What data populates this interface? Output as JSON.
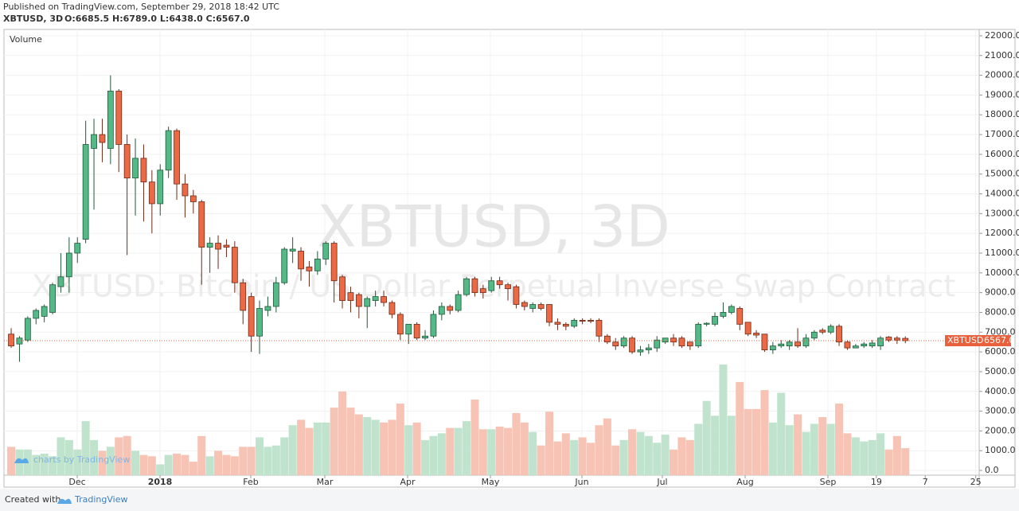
{
  "header": {
    "published": "Published on TradingView.com, September 29, 2018 18:42 UTC",
    "symbol": "XBTUSD, 3D",
    "ohlc": "O:6685.5 H:6789.0 L:6438.0 C:6567.0"
  },
  "watermark": {
    "symbol": "XBTUSD, 3D",
    "description": "XBTUSD: Bitcoin / US Dollar Perpetual Inverse Swap Contract"
  },
  "chart_data": {
    "type": "candlestick",
    "volume_title": "Volume",
    "up_color": "#53b987",
    "down_color": "#eb6a45",
    "up_volume_color": "#bfe3cc",
    "down_volume_color": "#f7c3b5",
    "grid": true,
    "open": [
      6900,
      6400,
      6600,
      7700,
      7800,
      8000,
      9300,
      9800,
      11000,
      11700,
      16300,
      17000,
      16300,
      19200,
      16500,
      14800,
      15800,
      14600,
      13500,
      15200,
      17200,
      14500,
      13900,
      13600,
      11300,
      11500,
      11400,
      11300,
      9500,
      8800,
      6800,
      8100,
      8300,
      9500,
      11100,
      11100,
      10300,
      10100,
      10700,
      11500,
      9800,
      9000,
      8900,
      8300,
      8600,
      8800,
      8500,
      7900,
      6900,
      7400,
      6700,
      6800,
      7900,
      8300,
      8100,
      8900,
      9700,
      9200,
      9100,
      9600,
      9400,
      9300,
      8500,
      8200,
      8400,
      8400,
      7500,
      7400,
      7300,
      7600,
      7600,
      7600,
      6800,
      6500,
      6300,
      6700,
      6000,
      6100,
      6200,
      6500,
      6700,
      6700,
      6500,
      6300,
      7400,
      7400,
      7800,
      8000,
      8200,
      7500,
      6950,
      6900,
      6100,
      6300,
      6300,
      6500,
      6300,
      6700,
      7100,
      7000,
      7300,
      6500,
      6200,
      6300,
      6300,
      6300,
      6750,
      6700,
      6685.5
    ],
    "high": [
      7200,
      6800,
      7800,
      8200,
      8400,
      9500,
      11000,
      11800,
      11800,
      17700,
      17800,
      17800,
      20000,
      19300,
      17000,
      16800,
      16500,
      15200,
      15500,
      17400,
      17300,
      15000,
      14200,
      13700,
      11800,
      11900,
      11700,
      11600,
      9700,
      9000,
      8600,
      8800,
      9800,
      11300,
      11800,
      11300,
      10600,
      11100,
      11600,
      11600,
      9900,
      9300,
      9000,
      8800,
      9100,
      9100,
      8600,
      8000,
      7400,
      7500,
      7100,
      8100,
      8500,
      8400,
      9100,
      9800,
      9800,
      9400,
      9800,
      9800,
      9500,
      9400,
      8600,
      8500,
      8500,
      8400,
      7700,
      7500,
      7700,
      7700,
      7700,
      7700,
      6900,
      6700,
      6800,
      6800,
      6300,
      6400,
      6800,
      6700,
      6900,
      6800,
      6500,
      7500,
      7500,
      8000,
      8500,
      8400,
      8300,
      7500,
      7100,
      6900,
      6500,
      6600,
      6600,
      7200,
      6900,
      7100,
      7200,
      7400,
      7400,
      6600,
      6400,
      6500,
      6600,
      6800,
      6800,
      6800,
      6789
    ],
    "low": [
      6200,
      5500,
      6500,
      7400,
      7500,
      7900,
      9000,
      9000,
      10500,
      11500,
      13200,
      15600,
      15500,
      15100,
      10900,
      12900,
      12600,
      12000,
      12900,
      14800,
      13700,
      12800,
      13000,
      9400,
      10000,
      10200,
      10800,
      9000,
      7400,
      6000,
      5900,
      7800,
      8000,
      9400,
      10500,
      9600,
      9300,
      9900,
      10400,
      8500,
      8200,
      8000,
      7700,
      7200,
      8300,
      8300,
      7700,
      6600,
      6400,
      6600,
      6600,
      6700,
      7600,
      7900,
      8000,
      8800,
      8800,
      8700,
      9000,
      9200,
      8600,
      8200,
      8100,
      8000,
      8100,
      7300,
      7100,
      7100,
      7200,
      7400,
      7450,
      6500,
      6400,
      6100,
      6200,
      5900,
      5800,
      5900,
      6000,
      6400,
      6300,
      6200,
      6100,
      6200,
      7300,
      7300,
      7700,
      7900,
      7100,
      6800,
      6700,
      6000,
      5900,
      6200,
      6100,
      6200,
      6200,
      6600,
      6900,
      6900,
      6300,
      6100,
      6200,
      6200,
      6200,
      6100,
      6500,
      6400,
      6438
    ],
    "close": [
      6300,
      6700,
      7700,
      8100,
      8300,
      9400,
      9800,
      11000,
      11500,
      16500,
      17000,
      16600,
      19200,
      16500,
      14800,
      15800,
      14600,
      13500,
      15200,
      17200,
      14500,
      13900,
      13600,
      11300,
      11500,
      11200,
      11300,
      9500,
      8100,
      6800,
      8200,
      8300,
      9500,
      11200,
      11200,
      10200,
      10100,
      10700,
      11500,
      9600,
      8600,
      8600,
      8300,
      8700,
      8800,
      8500,
      7900,
      6900,
      7400,
      6700,
      6800,
      7900,
      8300,
      8100,
      8900,
      9700,
      9000,
      9000,
      9600,
      9400,
      9200,
      8400,
      8300,
      8400,
      8200,
      7500,
      7400,
      7300,
      7600,
      7550,
      7550,
      6800,
      6500,
      6300,
      6700,
      6000,
      6100,
      6200,
      6600,
      6700,
      6500,
      6300,
      6300,
      7400,
      7450,
      7800,
      8000,
      8300,
      7400,
      6900,
      6850,
      6100,
      6300,
      6400,
      6500,
      6300,
      6700,
      7000,
      7000,
      7300,
      6500,
      6200,
      6300,
      6400,
      6450,
      6700,
      6600,
      6600,
      6567
    ],
    "volume": [
      21,
      19,
      19,
      15,
      16,
      14,
      28,
      26,
      19,
      40,
      26,
      18,
      21,
      28,
      29,
      18,
      15,
      14,
      8,
      15,
      16,
      15,
      10,
      29,
      14,
      18,
      15,
      14,
      21,
      21,
      28,
      21,
      22,
      28,
      37,
      41,
      35,
      39,
      39,
      50,
      62,
      50,
      45,
      43,
      41,
      39,
      41,
      53,
      37,
      39,
      26,
      29,
      31,
      35,
      35,
      40,
      56,
      34,
      34,
      36,
      35,
      46,
      39,
      32,
      22,
      47,
      25,
      31,
      26,
      28,
      24,
      37,
      42,
      22,
      26,
      34,
      32,
      29,
      24,
      30,
      19,
      28,
      26,
      38,
      55,
      44,
      82,
      44,
      69,
      49,
      49,
      63,
      39,
      61,
      37,
      45,
      32,
      38,
      43,
      38,
      53,
      31,
      28,
      25,
      26,
      31,
      19,
      29,
      20
    ],
    "xlim": [
      -0.87,
      116.92
    ],
    "xticks": [
      {
        "value": 7.98,
        "label": "Dec"
      },
      {
        "value": 17.98,
        "label": "2018"
      },
      {
        "value": 28.94,
        "label": "Feb"
      },
      {
        "value": 37.88,
        "label": "Mar"
      },
      {
        "value": 47.88,
        "label": "Apr"
      },
      {
        "value": 57.88,
        "label": "May"
      },
      {
        "value": 68.94,
        "label": "Jun"
      },
      {
        "value": 78.65,
        "label": "Jul"
      },
      {
        "value": 88.65,
        "label": "Aug"
      },
      {
        "value": 98.65,
        "label": "Sep"
      },
      {
        "value": 104.5,
        "label": "19"
      },
      {
        "value": 110.4,
        "label": "7"
      },
      {
        "value": 116.5,
        "label": "25"
      }
    ],
    "ylim": [
      -240,
      22320
    ],
    "yticks": [
      {
        "value": 0,
        "label": "0.0"
      },
      {
        "value": 1000,
        "label": "1000.0"
      },
      {
        "value": 2000,
        "label": "2000.0"
      },
      {
        "value": 3000,
        "label": "3000.0"
      },
      {
        "value": 4000,
        "label": "4000.0"
      },
      {
        "value": 5000,
        "label": "5000.0"
      },
      {
        "value": 6000,
        "label": "6000.0"
      },
      {
        "value": 7000,
        "label": "7000.0"
      },
      {
        "value": 8000,
        "label": "8000.0"
      },
      {
        "value": 9000,
        "label": "9000.0"
      },
      {
        "value": 10000,
        "label": "10000.0"
      },
      {
        "value": 11000,
        "label": "11000.0"
      },
      {
        "value": 12000,
        "label": "12000.0"
      },
      {
        "value": 13000,
        "label": "13000.0"
      },
      {
        "value": 14000,
        "label": "14000.0"
      },
      {
        "value": 15000,
        "label": "15000.0"
      },
      {
        "value": 16000,
        "label": "16000.0"
      },
      {
        "value": 17000,
        "label": "17000.0"
      },
      {
        "value": 18000,
        "label": "18000.0"
      },
      {
        "value": 19000,
        "label": "19000.0"
      },
      {
        "value": 20000,
        "label": "20000.0"
      },
      {
        "value": 21000,
        "label": "21000.0"
      },
      {
        "value": 22000,
        "label": "22000.0"
      }
    ],
    "vlim": [
      0,
      330
    ],
    "price_line": {
      "label": "XBTUSD",
      "value": 6567,
      "value_label": "6567.0",
      "color": "#e8603c"
    }
  },
  "branding": {
    "overlay": "charts by TradingView",
    "footer_prefix": "Created with",
    "footer_brand": "TradingView"
  }
}
